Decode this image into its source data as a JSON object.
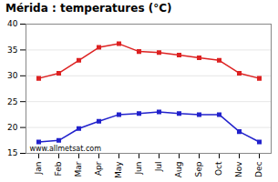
{
  "chart_data": {
    "type": "line",
    "title": "Mérida : temperatures (°C)",
    "categories": [
      "Jan",
      "Feb",
      "Mar",
      "Apr",
      "May",
      "Jun",
      "Jul",
      "Aug",
      "Sep",
      "Oct",
      "Nov",
      "Dec"
    ],
    "series": [
      {
        "color": "#dd2222",
        "marker": "square",
        "values": [
          29.5,
          30.5,
          33.0,
          35.5,
          36.2,
          34.7,
          34.5,
          34.0,
          33.5,
          33.0,
          30.5,
          29.5
        ]
      },
      {
        "color": "#2222cc",
        "marker": "square",
        "values": [
          17.2,
          17.5,
          19.8,
          21.2,
          22.5,
          22.7,
          23.0,
          22.7,
          22.5,
          22.5,
          19.2,
          17.2
        ]
      }
    ],
    "ylim": [
      15,
      40
    ],
    "yticks": [
      15,
      20,
      25,
      30,
      35,
      40
    ],
    "grid": true,
    "annotations": [
      "www.allmetsat.com"
    ]
  }
}
